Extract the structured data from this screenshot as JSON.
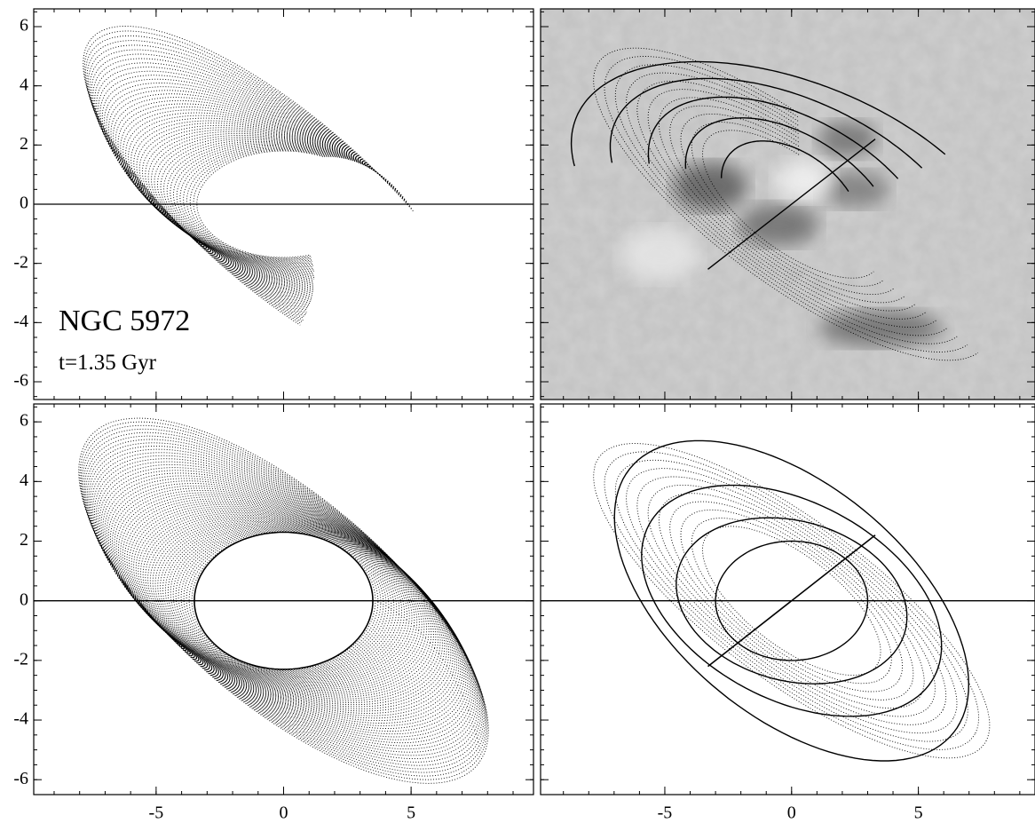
{
  "figure": {
    "panels": [
      {
        "xlim": [
          -9.8,
          9.8
        ],
        "ylim": [
          -6.6,
          6.6
        ],
        "xticks": [
          -5,
          0,
          5
        ],
        "yticks": [
          -6,
          -4,
          -2,
          0,
          2,
          4,
          6
        ],
        "show_xtick_labels": false,
        "show_ytick_labels": true,
        "zero_line": true,
        "image_background": false,
        "annotation": {
          "name": "NGC 5972",
          "time": "t=1.35 Gyr"
        }
      },
      {
        "xlim": [
          -9.9,
          9.6
        ],
        "ylim": [
          -6.6,
          6.6
        ],
        "xticks": [
          -5,
          0,
          5
        ],
        "yticks": [
          -6,
          -4,
          -2,
          0,
          2,
          4,
          6
        ],
        "show_xtick_labels": false,
        "show_ytick_labels": false,
        "zero_line": false,
        "image_background": true
      },
      {
        "xlim": [
          -9.8,
          9.8
        ],
        "ylim": [
          -6.5,
          6.6
        ],
        "xticks": [
          -5,
          0,
          5
        ],
        "yticks": [
          -6,
          -4,
          -2,
          0,
          2,
          4,
          6
        ],
        "show_xtick_labels": true,
        "show_ytick_labels": true,
        "zero_line": true,
        "image_background": false
      },
      {
        "xlim": [
          -9.9,
          9.6
        ],
        "ylim": [
          -6.5,
          6.6
        ],
        "xticks": [
          -5,
          0,
          5
        ],
        "yticks": [
          -6,
          -4,
          -2,
          0,
          2,
          4,
          6
        ],
        "show_xtick_labels": true,
        "show_ytick_labels": false,
        "zero_line": true,
        "image_background": false
      }
    ]
  }
}
